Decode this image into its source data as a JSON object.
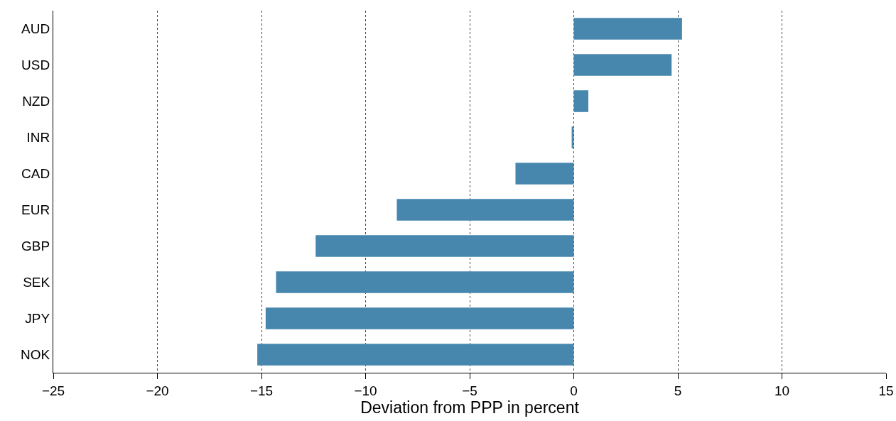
{
  "chart_data": {
    "type": "bar",
    "orientation": "horizontal",
    "xlabel": "Deviation from PPP in percent",
    "categories": [
      "AUD",
      "USD",
      "NZD",
      "INR",
      "CAD",
      "EUR",
      "GBP",
      "SEK",
      "JPY",
      "NOK"
    ],
    "values": [
      5.2,
      4.7,
      0.7,
      -0.1,
      -2.8,
      -8.5,
      -12.4,
      -14.3,
      -14.8,
      -15.2
    ],
    "color": "#4787ae",
    "xlim": [
      -25,
      15
    ],
    "xticks": [
      {
        "value": -25,
        "label": "−25"
      },
      {
        "value": -20,
        "label": "−20"
      },
      {
        "value": -15,
        "label": "−15"
      },
      {
        "value": -10,
        "label": "−10"
      },
      {
        "value": -5,
        "label": "−5"
      },
      0,
      5,
      10,
      15
    ],
    "grid": "x",
    "legend": false
  }
}
